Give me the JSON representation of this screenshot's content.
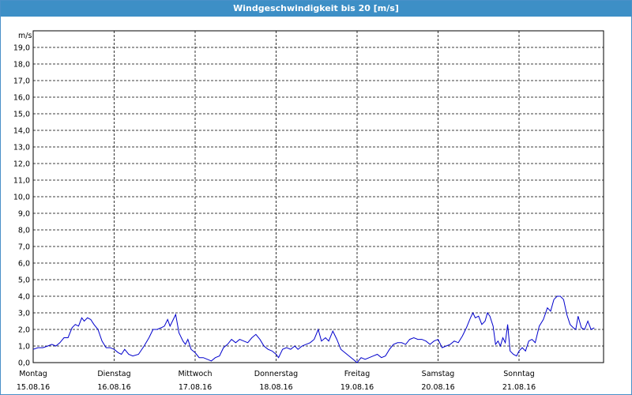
{
  "window": {
    "title": "Windgeschwindigkeit bis 20 [m/s]"
  },
  "colors": {
    "titlebar": "#3d8fc6",
    "line": "#0000cc",
    "grid": "#000000"
  },
  "chart_data": {
    "type": "line",
    "title": "Windgeschwindigkeit bis 20 [m/s]",
    "ylabel": "m/s",
    "xlabel": "",
    "ylim": [
      0,
      20
    ],
    "grid": true,
    "y_ticks": [
      "0,0",
      "1,0",
      "2,0",
      "3,0",
      "4,0",
      "5,0",
      "6,0",
      "7,0",
      "8,0",
      "9,0",
      "10,0",
      "11,0",
      "12,0",
      "13,0",
      "14,0",
      "15,0",
      "16,0",
      "17,0",
      "18,0",
      "19,0"
    ],
    "x_ticks": [
      {
        "day": "Montag",
        "date": "15.08.16"
      },
      {
        "day": "Dienstag",
        "date": "16.08.16"
      },
      {
        "day": "Mittwoch",
        "date": "17.08.16"
      },
      {
        "day": "Donnerstag",
        "date": "18.08.16"
      },
      {
        "day": "Freitag",
        "date": "19.08.16"
      },
      {
        "day": "Samstag",
        "date": "20.08.16"
      },
      {
        "day": "Sonntag",
        "date": "21.08.16"
      }
    ],
    "series": [
      {
        "x_unit": "days since Montag 15.08.16 00:00",
        "points": [
          [
            0.0,
            0.8
          ],
          [
            0.06,
            0.9
          ],
          [
            0.12,
            0.9
          ],
          [
            0.18,
            1.0
          ],
          [
            0.23,
            1.1
          ],
          [
            0.28,
            1.0
          ],
          [
            0.33,
            1.2
          ],
          [
            0.38,
            1.5
          ],
          [
            0.43,
            1.5
          ],
          [
            0.48,
            2.1
          ],
          [
            0.52,
            2.3
          ],
          [
            0.56,
            2.2
          ],
          [
            0.6,
            2.7
          ],
          [
            0.63,
            2.5
          ],
          [
            0.67,
            2.7
          ],
          [
            0.71,
            2.6
          ],
          [
            0.75,
            2.3
          ],
          [
            0.8,
            2.0
          ],
          [
            0.85,
            1.3
          ],
          [
            0.9,
            0.9
          ],
          [
            0.95,
            0.9
          ],
          [
            1.0,
            0.8
          ],
          [
            1.05,
            0.6
          ],
          [
            1.09,
            0.5
          ],
          [
            1.13,
            0.8
          ],
          [
            1.18,
            0.5
          ],
          [
            1.23,
            0.4
          ],
          [
            1.3,
            0.5
          ],
          [
            1.37,
            1.0
          ],
          [
            1.43,
            1.5
          ],
          [
            1.48,
            2.0
          ],
          [
            1.53,
            2.0
          ],
          [
            1.58,
            2.1
          ],
          [
            1.62,
            2.2
          ],
          [
            1.66,
            2.6
          ],
          [
            1.69,
            2.2
          ],
          [
            1.72,
            2.5
          ],
          [
            1.76,
            2.9
          ],
          [
            1.8,
            1.8
          ],
          [
            1.85,
            1.3
          ],
          [
            1.88,
            1.1
          ],
          [
            1.91,
            1.4
          ],
          [
            1.95,
            0.8
          ],
          [
            2.0,
            0.6
          ],
          [
            2.05,
            0.3
          ],
          [
            2.1,
            0.3
          ],
          [
            2.15,
            0.2
          ],
          [
            2.2,
            0.1
          ],
          [
            2.25,
            0.3
          ],
          [
            2.3,
            0.4
          ],
          [
            2.35,
            0.9
          ],
          [
            2.4,
            1.1
          ],
          [
            2.45,
            1.4
          ],
          [
            2.5,
            1.2
          ],
          [
            2.55,
            1.4
          ],
          [
            2.6,
            1.3
          ],
          [
            2.65,
            1.2
          ],
          [
            2.7,
            1.5
          ],
          [
            2.75,
            1.7
          ],
          [
            2.8,
            1.4
          ],
          [
            2.85,
            1.0
          ],
          [
            2.9,
            0.8
          ],
          [
            2.95,
            0.7
          ],
          [
            3.0,
            0.5
          ],
          [
            3.03,
            0.3
          ],
          [
            3.08,
            0.8
          ],
          [
            3.13,
            0.9
          ],
          [
            3.18,
            0.8
          ],
          [
            3.23,
            1.0
          ],
          [
            3.27,
            0.8
          ],
          [
            3.32,
            1.0
          ],
          [
            3.37,
            1.1
          ],
          [
            3.42,
            1.2
          ],
          [
            3.47,
            1.4
          ],
          [
            3.52,
            2.0
          ],
          [
            3.56,
            1.3
          ],
          [
            3.61,
            1.5
          ],
          [
            3.65,
            1.3
          ],
          [
            3.7,
            1.9
          ],
          [
            3.75,
            1.4
          ],
          [
            3.8,
            0.8
          ],
          [
            3.85,
            0.6
          ],
          [
            3.9,
            0.4
          ],
          [
            3.95,
            0.2
          ],
          [
            4.0,
            0.0
          ],
          [
            4.05,
            0.3
          ],
          [
            4.1,
            0.2
          ],
          [
            4.15,
            0.3
          ],
          [
            4.2,
            0.4
          ],
          [
            4.25,
            0.5
          ],
          [
            4.3,
            0.3
          ],
          [
            4.35,
            0.4
          ],
          [
            4.4,
            0.8
          ],
          [
            4.45,
            1.1
          ],
          [
            4.5,
            1.2
          ],
          [
            4.55,
            1.2
          ],
          [
            4.6,
            1.1
          ],
          [
            4.65,
            1.4
          ],
          [
            4.7,
            1.5
          ],
          [
            4.75,
            1.4
          ],
          [
            4.8,
            1.4
          ],
          [
            4.85,
            1.3
          ],
          [
            4.9,
            1.1
          ],
          [
            4.95,
            1.3
          ],
          [
            5.0,
            1.4
          ],
          [
            5.05,
            0.9
          ],
          [
            5.1,
            1.0
          ],
          [
            5.15,
            1.1
          ],
          [
            5.2,
            1.3
          ],
          [
            5.25,
            1.2
          ],
          [
            5.3,
            1.6
          ],
          [
            5.35,
            2.1
          ],
          [
            5.4,
            2.7
          ],
          [
            5.43,
            3.0
          ],
          [
            5.46,
            2.7
          ],
          [
            5.5,
            2.8
          ],
          [
            5.54,
            2.3
          ],
          [
            5.58,
            2.5
          ],
          [
            5.61,
            3.0
          ],
          [
            5.64,
            2.8
          ],
          [
            5.68,
            2.2
          ],
          [
            5.71,
            1.1
          ],
          [
            5.74,
            1.3
          ],
          [
            5.77,
            1.0
          ],
          [
            5.8,
            1.5
          ],
          [
            5.83,
            1.2
          ],
          [
            5.86,
            2.3
          ],
          [
            5.89,
            0.7
          ],
          [
            5.93,
            0.5
          ],
          [
            5.97,
            0.4
          ],
          [
            6.0,
            0.7
          ],
          [
            6.04,
            0.9
          ],
          [
            6.08,
            0.7
          ],
          [
            6.12,
            1.3
          ],
          [
            6.16,
            1.4
          ],
          [
            6.2,
            1.2
          ],
          [
            6.25,
            2.2
          ],
          [
            6.3,
            2.6
          ],
          [
            6.35,
            3.3
          ],
          [
            6.39,
            3.1
          ],
          [
            6.43,
            3.8
          ],
          [
            6.47,
            4.0
          ],
          [
            6.51,
            4.0
          ],
          [
            6.55,
            3.8
          ],
          [
            6.59,
            2.9
          ],
          [
            6.63,
            2.3
          ],
          [
            6.67,
            2.1
          ],
          [
            6.7,
            2.0
          ],
          [
            6.73,
            2.8
          ],
          [
            6.77,
            2.1
          ],
          [
            6.81,
            2.0
          ],
          [
            6.85,
            2.5
          ],
          [
            6.89,
            2.0
          ],
          [
            6.93,
            2.1
          ]
        ]
      }
    ]
  }
}
